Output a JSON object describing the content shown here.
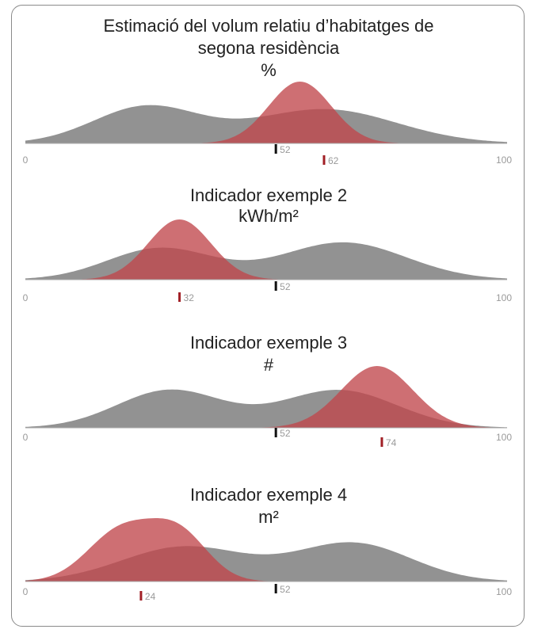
{
  "chart_data": [
    {
      "type": "area",
      "title_lines": [
        "Estimació del volum relatiu d’habitatges de",
        "segona residència"
      ],
      "unit": "%",
      "xlim": [
        0,
        100
      ],
      "axis_min_label": "0",
      "axis_max_label": "100",
      "series": [
        {
          "color": "#8c8c8c",
          "marker_value": 52,
          "marker_color": "#111111",
          "marker_label": "52",
          "components": [
            {
              "mu": 25,
              "sigma": 11,
              "amp": 0.62
            },
            {
              "mu": 62,
              "sigma": 15,
              "amp": 0.58
            }
          ]
        },
        {
          "color": "#c0464b",
          "marker_value": 62,
          "marker_color": "#a11f25",
          "marker_label": "62",
          "components": [
            {
              "mu": 57,
              "sigma": 6.5,
              "amp": 1.0
            }
          ]
        }
      ]
    },
    {
      "type": "area",
      "title_lines": [
        "Indicador exemple 2"
      ],
      "unit": "kWh/m²",
      "xlim": [
        0,
        100
      ],
      "axis_min_label": "0",
      "axis_max_label": "100",
      "series": [
        {
          "color": "#8c8c8c",
          "marker_value": 52,
          "marker_color": "#111111",
          "marker_label": "52",
          "components": [
            {
              "mu": 28,
              "sigma": 11,
              "amp": 0.55
            },
            {
              "mu": 66,
              "sigma": 13,
              "amp": 0.65
            }
          ]
        },
        {
          "color": "#c0464b",
          "marker_value": 32,
          "marker_color": "#a11f25",
          "marker_label": "32",
          "components": [
            {
              "mu": 32,
              "sigma": 6.5,
              "amp": 1.0
            }
          ]
        }
      ]
    },
    {
      "type": "area",
      "title_lines": [
        "Indicador exemple 3"
      ],
      "unit": "#",
      "xlim": [
        0,
        100
      ],
      "axis_min_label": "0",
      "axis_max_label": "100",
      "series": [
        {
          "color": "#8c8c8c",
          "marker_value": 52,
          "marker_color": "#111111",
          "marker_label": "52",
          "components": [
            {
              "mu": 30,
              "sigma": 11,
              "amp": 0.62
            },
            {
              "mu": 65,
              "sigma": 12,
              "amp": 0.62
            }
          ]
        },
        {
          "color": "#c0464b",
          "marker_value": 74,
          "marker_color": "#a11f25",
          "marker_label": "74",
          "components": [
            {
              "mu": 73,
              "sigma": 7.5,
              "amp": 1.0
            }
          ]
        }
      ]
    },
    {
      "type": "area",
      "title_lines": [
        "Indicador exemple 4"
      ],
      "unit": "m²",
      "xlim": [
        0,
        100
      ],
      "axis_min_label": "0",
      "axis_max_label": "100",
      "series": [
        {
          "color": "#8c8c8c",
          "marker_value": 52,
          "marker_color": "#111111",
          "marker_label": "52",
          "components": [
            {
              "mu": 33,
              "sigma": 13,
              "amp": 0.5
            },
            {
              "mu": 68,
              "sigma": 12,
              "amp": 0.55
            }
          ]
        },
        {
          "color": "#c0464b",
          "marker_value": 24,
          "marker_color": "#a11f25",
          "marker_label": "24",
          "components": [
            {
              "mu": 20,
              "sigma": 7,
              "amp": 0.88
            },
            {
              "mu": 32,
              "sigma": 6,
              "amp": 0.78
            }
          ]
        }
      ]
    }
  ]
}
